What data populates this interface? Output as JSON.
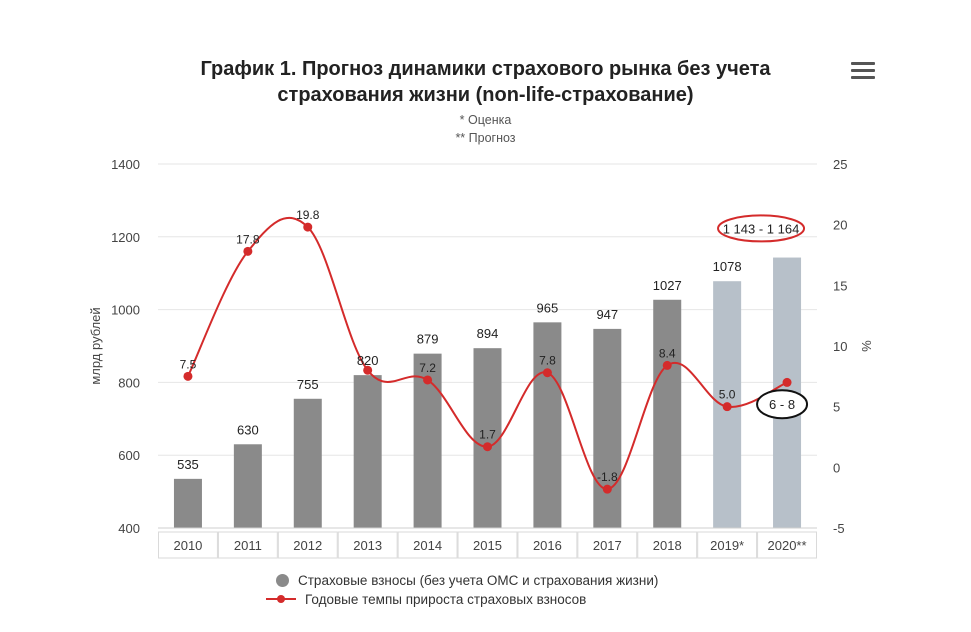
{
  "header": {
    "title_line1": "График 1. Прогноз динамики страхового рынка без учета",
    "title_line2": "страхования жизни (non-life-страхование)",
    "note_estimate": "* Оценка",
    "note_forecast": "** Прогноз",
    "menu_icon": "hamburger-menu-icon"
  },
  "legend": {
    "premiums": "Страховые взносы (без учета ОМС и страхования жизни)",
    "growth": "Годовые темпы прироста страховых взносов"
  },
  "chart_data": {
    "type": "bar",
    "categories": [
      "2010",
      "2011",
      "2012",
      "2013",
      "2014",
      "2015",
      "2016",
      "2017",
      "2018",
      "2019*",
      "2020**"
    ],
    "series": [
      {
        "name": "Страховые взносы (без учета ОМС и страхования жизни)",
        "type": "bar",
        "axis": "left",
        "values": [
          535,
          630,
          755,
          820,
          879,
          894,
          965,
          947,
          1027,
          1078,
          1143
        ],
        "labels": [
          "535",
          "630",
          "755",
          "820",
          "879",
          "894",
          "965",
          "947",
          "1027",
          "1078",
          "1 143 - 1 164"
        ],
        "colors": [
          "#8a8a8a",
          "#8a8a8a",
          "#8a8a8a",
          "#8a8a8a",
          "#8a8a8a",
          "#8a8a8a",
          "#8a8a8a",
          "#8a8a8a",
          "#8a8a8a",
          "#b7c0c9",
          "#b7c0c9"
        ]
      },
      {
        "name": "Годовые темпы прироста страховых взносов",
        "type": "line",
        "axis": "right",
        "values": [
          7.5,
          17.8,
          19.8,
          8.0,
          7.2,
          1.7,
          7.8,
          -1.8,
          8.4,
          5.0,
          7.0
        ],
        "labels": [
          "7.5",
          "17.8",
          "19.8",
          "",
          "7.2",
          "1.7",
          "7.8",
          "-1.8",
          "8.4",
          "5.0",
          "6 - 8"
        ],
        "color": "#d42b2b"
      }
    ],
    "y_left": {
      "label": "млрд рублей",
      "min": 400,
      "max": 1400,
      "ticks": [
        400,
        600,
        800,
        1000,
        1200,
        1400
      ]
    },
    "y_right": {
      "label": "%",
      "min": -5,
      "max": 25,
      "ticks": [
        -5,
        0,
        5,
        10,
        15,
        20,
        25
      ]
    },
    "grid": true,
    "legend_position": "bottom",
    "highlight_colors": {
      "red_oval": "#d42b2b",
      "black_oval": "#111111"
    }
  }
}
